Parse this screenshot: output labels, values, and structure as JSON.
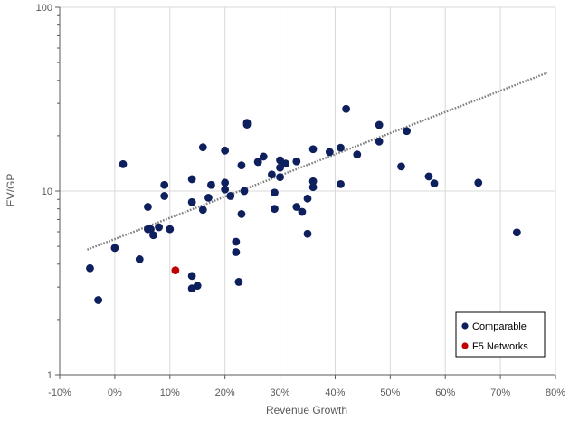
{
  "chart_data": {
    "type": "scatter",
    "title": "",
    "xlabel": "Revenue Growth",
    "ylabel": "EV/GP",
    "x_scale": "linear",
    "y_scale": "log",
    "xlim": [
      -0.1,
      0.8
    ],
    "ylim": [
      1,
      100
    ],
    "x_ticks": [
      -0.1,
      0.0,
      0.1,
      0.2,
      0.3,
      0.4,
      0.5,
      0.6,
      0.7,
      0.8
    ],
    "x_tick_labels": [
      "-10%",
      "0%",
      "10%",
      "20%",
      "30%",
      "40%",
      "50%",
      "60%",
      "70%",
      "80%"
    ],
    "y_ticks": [
      1,
      10,
      100
    ],
    "y_tick_labels": [
      "1",
      "10",
      "100"
    ],
    "grid": true,
    "legend_position": "bottom-right",
    "series": [
      {
        "name": "Comparable",
        "color": "#0d1f5c",
        "x": [
          -0.045,
          -0.03,
          0.0,
          0.015,
          0.045,
          0.06,
          0.06,
          0.065,
          0.07,
          0.08,
          0.09,
          0.09,
          0.1,
          0.14,
          0.14,
          0.14,
          0.14,
          0.15,
          0.16,
          0.16,
          0.17,
          0.175,
          0.2,
          0.2,
          0.2,
          0.21,
          0.22,
          0.22,
          0.225,
          0.23,
          0.23,
          0.235,
          0.24,
          0.24,
          0.26,
          0.26,
          0.27,
          0.285,
          0.29,
          0.29,
          0.3,
          0.3,
          0.3,
          0.31,
          0.33,
          0.33,
          0.34,
          0.35,
          0.35,
          0.36,
          0.36,
          0.36,
          0.39,
          0.41,
          0.41,
          0.42,
          0.44,
          0.48,
          0.48,
          0.52,
          0.53,
          0.57,
          0.58,
          0.66,
          0.73
        ],
        "y": [
          3.8,
          2.55,
          4.9,
          14.0,
          4.25,
          8.2,
          6.2,
          6.2,
          5.75,
          6.35,
          9.4,
          10.8,
          6.2,
          3.45,
          2.95,
          8.7,
          11.6,
          3.05,
          17.3,
          7.9,
          9.2,
          10.8,
          16.6,
          11.1,
          10.2,
          9.4,
          5.3,
          4.65,
          3.2,
          7.5,
          13.8,
          10.0,
          23.0,
          23.5,
          14.4,
          14.4,
          15.4,
          12.3,
          9.8,
          8.0,
          14.7,
          13.4,
          11.9,
          14.1,
          14.5,
          8.2,
          7.7,
          9.1,
          5.85,
          10.5,
          11.3,
          16.9,
          16.3,
          17.2,
          10.9,
          28.0,
          15.8,
          22.9,
          18.6,
          13.6,
          21.2,
          12.0,
          11.0,
          11.1,
          5.95
        ]
      },
      {
        "name": "F5 Networks",
        "color": "#c00000",
        "x": [
          0.11
        ],
        "y": [
          3.7
        ]
      }
    ],
    "trendline": {
      "style": "dotted",
      "color": "#7f7f7f",
      "x": [
        -0.05,
        0.785
      ],
      "y": [
        4.8,
        44.0
      ]
    }
  }
}
